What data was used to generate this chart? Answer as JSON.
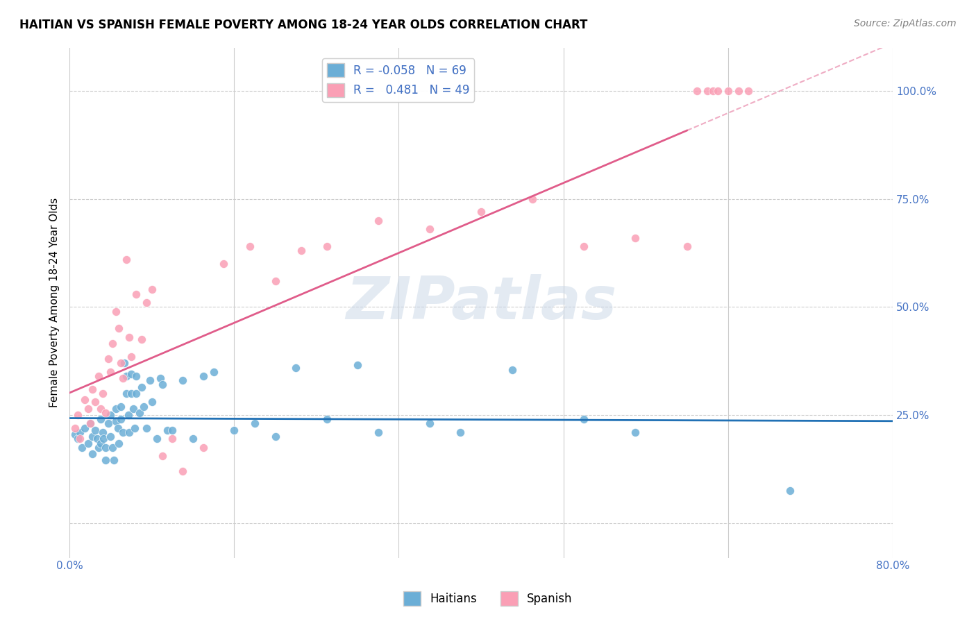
{
  "title": "HAITIAN VS SPANISH FEMALE POVERTY AMONG 18-24 YEAR OLDS CORRELATION CHART",
  "source": "Source: ZipAtlas.com",
  "ylabel": "Female Poverty Among 18-24 Year Olds",
  "xlim": [
    0.0,
    0.8
  ],
  "ylim": [
    -0.08,
    1.1
  ],
  "watermark": "ZIPatlas",
  "blue_color": "#6baed6",
  "pink_color": "#fa9fb5",
  "blue_line_color": "#2171b5",
  "pink_line_color": "#e05c8a",
  "blue_R": -0.058,
  "blue_N": 69,
  "pink_R": 0.481,
  "pink_N": 49,
  "haitians_x": [
    0.005,
    0.008,
    0.01,
    0.012,
    0.015,
    0.018,
    0.02,
    0.022,
    0.022,
    0.025,
    0.027,
    0.028,
    0.03,
    0.03,
    0.032,
    0.033,
    0.035,
    0.035,
    0.038,
    0.04,
    0.04,
    0.042,
    0.043,
    0.045,
    0.045,
    0.047,
    0.048,
    0.05,
    0.05,
    0.052,
    0.053,
    0.055,
    0.055,
    0.057,
    0.058,
    0.06,
    0.06,
    0.062,
    0.063,
    0.065,
    0.065,
    0.068,
    0.07,
    0.072,
    0.075,
    0.078,
    0.08,
    0.085,
    0.088,
    0.09,
    0.095,
    0.1,
    0.11,
    0.12,
    0.13,
    0.14,
    0.16,
    0.18,
    0.2,
    0.22,
    0.25,
    0.28,
    0.3,
    0.35,
    0.38,
    0.43,
    0.5,
    0.55,
    0.7
  ],
  "haitians_y": [
    0.205,
    0.195,
    0.21,
    0.175,
    0.22,
    0.185,
    0.23,
    0.2,
    0.16,
    0.215,
    0.195,
    0.175,
    0.24,
    0.185,
    0.21,
    0.195,
    0.175,
    0.145,
    0.23,
    0.25,
    0.2,
    0.175,
    0.145,
    0.265,
    0.235,
    0.22,
    0.185,
    0.27,
    0.24,
    0.21,
    0.37,
    0.34,
    0.3,
    0.25,
    0.21,
    0.345,
    0.3,
    0.265,
    0.22,
    0.34,
    0.3,
    0.255,
    0.315,
    0.27,
    0.22,
    0.33,
    0.28,
    0.195,
    0.335,
    0.32,
    0.215,
    0.215,
    0.33,
    0.195,
    0.34,
    0.35,
    0.215,
    0.23,
    0.2,
    0.36,
    0.24,
    0.365,
    0.21,
    0.23,
    0.21,
    0.355,
    0.24,
    0.21,
    0.075
  ],
  "spanish_x": [
    0.005,
    0.008,
    0.01,
    0.015,
    0.018,
    0.02,
    0.022,
    0.025,
    0.028,
    0.03,
    0.032,
    0.035,
    0.038,
    0.04,
    0.042,
    0.045,
    0.048,
    0.05,
    0.052,
    0.055,
    0.058,
    0.06,
    0.065,
    0.07,
    0.075,
    0.08,
    0.09,
    0.1,
    0.11,
    0.13,
    0.15,
    0.175,
    0.2,
    0.225,
    0.25,
    0.3,
    0.35,
    0.4,
    0.45,
    0.5,
    0.55,
    0.6,
    0.61,
    0.62,
    0.625,
    0.63,
    0.64,
    0.65,
    0.66
  ],
  "spanish_y": [
    0.22,
    0.25,
    0.195,
    0.285,
    0.265,
    0.23,
    0.31,
    0.28,
    0.34,
    0.265,
    0.3,
    0.255,
    0.38,
    0.35,
    0.415,
    0.49,
    0.45,
    0.37,
    0.335,
    0.61,
    0.43,
    0.385,
    0.53,
    0.425,
    0.51,
    0.54,
    0.155,
    0.195,
    0.12,
    0.175,
    0.6,
    0.64,
    0.56,
    0.63,
    0.64,
    0.7,
    0.68,
    0.72,
    0.75,
    0.64,
    0.66,
    0.64,
    1.0,
    1.0,
    1.0,
    1.0,
    1.0,
    1.0,
    1.0
  ]
}
